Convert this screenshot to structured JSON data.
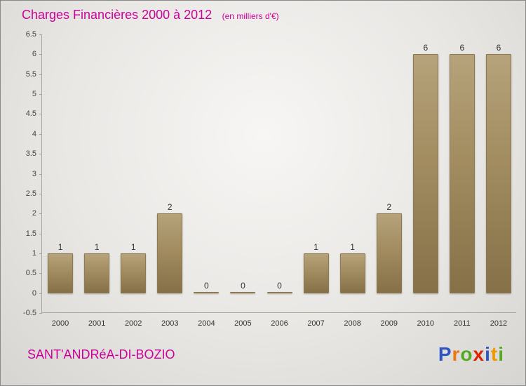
{
  "header": {
    "title": "Charges Financières 2000 à 2012",
    "subtitle": "(en milliers d'€)"
  },
  "footer": {
    "company": "SANT'ANDRéA-DI-BOZIO"
  },
  "logo": {
    "letters": [
      {
        "ch": "P",
        "color": "#2f55c4"
      },
      {
        "ch": "r",
        "color": "#ee7711"
      },
      {
        "ch": "o",
        "color": "#55aa22"
      },
      {
        "ch": "x",
        "color": "#dd2200"
      },
      {
        "ch": "i",
        "color": "#2f55c4"
      },
      {
        "ch": "t",
        "color": "#ee9900"
      },
      {
        "ch": "i",
        "color": "#55aa22"
      }
    ]
  },
  "colors": {
    "title": "#cc0099",
    "bar_top": "#b6a37b",
    "bar_bottom": "#857048",
    "axis": "#aaa49c",
    "tick_text": "#444444"
  },
  "chart_data": {
    "type": "bar",
    "title": "Charges Financières 2000 à 2012",
    "subtitle": "(en milliers d'€)",
    "categories": [
      "2000",
      "2001",
      "2002",
      "2003",
      "2004",
      "2005",
      "2006",
      "2007",
      "2008",
      "2009",
      "2010",
      "2011",
      "2012"
    ],
    "values": [
      1,
      1,
      1,
      2,
      0,
      0,
      0,
      1,
      1,
      2,
      6,
      6,
      6
    ],
    "xlabel": "",
    "ylabel": "",
    "ylim": [
      -0.5,
      6.5
    ],
    "ytick_step": 0.5,
    "grid": false,
    "legend": false,
    "value_labels": true
  }
}
